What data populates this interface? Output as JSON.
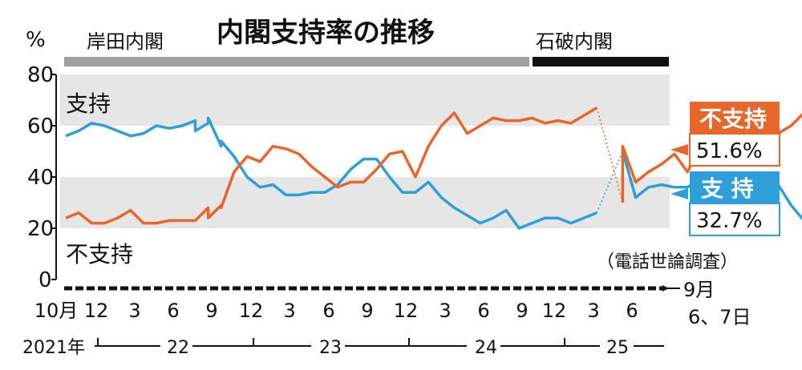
{
  "chart_data": {
    "type": "line",
    "title": "内閣支持率の推移",
    "y_unit": "%",
    "ylim": [
      0,
      80
    ],
    "y_ticks": [
      "80",
      "60",
      "40",
      "20",
      "0"
    ],
    "grid": "shaded bands 20–40 and 60–80",
    "eras": [
      {
        "name": "岸田内閣",
        "from": "2021-10",
        "to": "2024-09"
      },
      {
        "name": "石破内閣",
        "from": "2024-10",
        "to": "2025-09"
      }
    ],
    "x_month_labels": [
      "10月",
      "12",
      "3",
      "6",
      "9",
      "12",
      "3",
      "6",
      "9",
      "12",
      "3",
      "6",
      "9",
      "12",
      "3",
      "6"
    ],
    "x_year_labels": [
      "2021年",
      "22",
      "23",
      "24",
      "25"
    ],
    "note": "（電話世論調査）",
    "end_label": [
      "9月",
      "6、7日"
    ],
    "series": [
      {
        "name": "支持",
        "color": "#2e9fd8",
        "segments": [
          [
            [
              "2021-10",
              56
            ],
            [
              "2021-11",
              58
            ],
            [
              "2021-12",
              61
            ],
            [
              "2022-01",
              60
            ],
            [
              "2022-02",
              58
            ],
            [
              "2022-03",
              56
            ],
            [
              "2022-04",
              57
            ],
            [
              "2022-05",
              60
            ],
            [
              "2022-06",
              59
            ],
            [
              "2022-07",
              60
            ],
            [
              "2022-08",
              62
            ],
            [
              "2022-08",
              58
            ],
            [
              "2022-09",
              61
            ],
            [
              "2022-09",
              63
            ],
            [
              "2022-10",
              52
            ],
            [
              "2022-10",
              54
            ],
            [
              "2022-11",
              48
            ],
            [
              "2022-12",
              40
            ],
            [
              "2023-01",
              36
            ],
            [
              "2023-02",
              37
            ],
            [
              "2023-03",
              33
            ],
            [
              "2023-04",
              33
            ],
            [
              "2023-05",
              34
            ],
            [
              "2023-06",
              34
            ],
            [
              "2023-07",
              37
            ],
            [
              "2023-08",
              43
            ],
            [
              "2023-09",
              47
            ],
            [
              "2023-10",
              47
            ],
            [
              "2023-11",
              40
            ],
            [
              "2023-12",
              34
            ],
            [
              "2024-01",
              34
            ],
            [
              "2024-02",
              38
            ],
            [
              "2024-03",
              32
            ],
            [
              "2024-04",
              28
            ],
            [
              "2024-05",
              25
            ],
            [
              "2024-06",
              22
            ],
            [
              "2024-07",
              24
            ],
            [
              "2024-08",
              27
            ],
            [
              "2024-09",
              20
            ],
            [
              "2024-10",
              22
            ],
            [
              "2024-11",
              24
            ],
            [
              "2024-12",
              24
            ],
            [
              "2025-01",
              22
            ],
            [
              "2025-02",
              24
            ],
            [
              "2025-03",
              26
            ]
          ],
          [
            [
              "2025-05",
              50
            ],
            [
              "2025-06",
              32
            ],
            [
              "2025-07",
              36
            ],
            [
              "2025-08",
              37
            ],
            [
              "2025-09",
              36
            ],
            [
              "2025-10",
              36
            ],
            [
              "2025-11",
              39
            ],
            [
              "2025-12",
              33
            ],
            [
              "2026-01",
              28
            ],
            [
              "2026-02",
              33
            ],
            [
              "2026-03",
              27
            ],
            [
              "2026-04",
              31
            ],
            [
              "2026-05",
              37
            ],
            [
              "2026-06",
              29
            ],
            [
              "2026-07",
              23
            ],
            [
              "2026-08",
              28
            ],
            [
              "2026-09",
              34
            ],
            [
              "2026-10",
              32.7
            ]
          ]
        ]
      },
      {
        "name": "不支持",
        "color": "#e8662b",
        "segments": [
          [
            [
              "2021-10",
              24
            ],
            [
              "2021-11",
              26
            ],
            [
              "2021-12",
              22
            ],
            [
              "2022-01",
              22
            ],
            [
              "2022-02",
              24
            ],
            [
              "2022-03",
              27
            ],
            [
              "2022-04",
              22
            ],
            [
              "2022-05",
              22
            ],
            [
              "2022-06",
              23
            ],
            [
              "2022-07",
              23
            ],
            [
              "2022-08",
              23
            ],
            [
              "2022-09",
              28
            ],
            [
              "2022-09",
              24
            ],
            [
              "2022-10",
              29
            ],
            [
              "2022-10",
              28
            ],
            [
              "2022-11",
              42
            ],
            [
              "2022-12",
              48
            ],
            [
              "2023-01",
              46
            ],
            [
              "2023-02",
              52
            ],
            [
              "2023-03",
              51
            ],
            [
              "2023-04",
              49
            ],
            [
              "2023-05",
              44
            ],
            [
              "2023-06",
              40
            ],
            [
              "2023-07",
              36
            ],
            [
              "2023-08",
              38
            ],
            [
              "2023-09",
              38
            ],
            [
              "2023-10",
              43
            ],
            [
              "2023-11",
              49
            ],
            [
              "2023-12",
              50
            ],
            [
              "2024-01",
              40
            ],
            [
              "2024-02",
              52
            ],
            [
              "2024-03",
              60
            ],
            [
              "2024-04",
              65
            ],
            [
              "2024-05",
              57
            ],
            [
              "2024-06",
              60
            ],
            [
              "2024-07",
              63
            ],
            [
              "2024-08",
              62
            ],
            [
              "2024-09",
              62
            ],
            [
              "2024-10",
              63
            ],
            [
              "2024-11",
              61
            ],
            [
              "2024-12",
              62
            ],
            [
              "2025-01",
              61
            ],
            [
              "2025-02",
              64
            ],
            [
              "2025-03",
              67
            ]
          ],
          [
            [
              "2025-05",
              30
            ],
            [
              "2025-05",
              52
            ],
            [
              "2025-06",
              38
            ],
            [
              "2025-07",
              42
            ],
            [
              "2025-08",
              45
            ],
            [
              "2025-09",
              49
            ],
            [
              "2025-10",
              42
            ],
            [
              "2025-11",
              52
            ],
            [
              "2025-12",
              58
            ],
            [
              "2026-01",
              51
            ],
            [
              "2026-02",
              53
            ],
            [
              "2026-03",
              56
            ],
            [
              "2026-04",
              48
            ],
            [
              "2026-05",
              57
            ],
            [
              "2026-06",
              60
            ],
            [
              "2026-07",
              65
            ],
            [
              "2026-08",
              52
            ],
            [
              "2026-09",
              53
            ],
            [
              "2026-10",
              51.6
            ]
          ]
        ]
      }
    ],
    "transition_links": [
      {
        "series": "支持",
        "from": [
          "2025-03",
          26
        ],
        "to": [
          "2025-05",
          50
        ]
      },
      {
        "series": "不支持",
        "from": [
          "2025-03",
          67
        ],
        "to": [
          "2025-05",
          30
        ]
      }
    ],
    "inline_labels": {
      "top": "支持",
      "bottom": "不支持"
    },
    "end_values": [
      {
        "label": "不支持",
        "value": "51.6%",
        "color": "#e8662b"
      },
      {
        "label": "支 持",
        "value": "32.7%",
        "color": "#2e9fd8"
      }
    ]
  }
}
